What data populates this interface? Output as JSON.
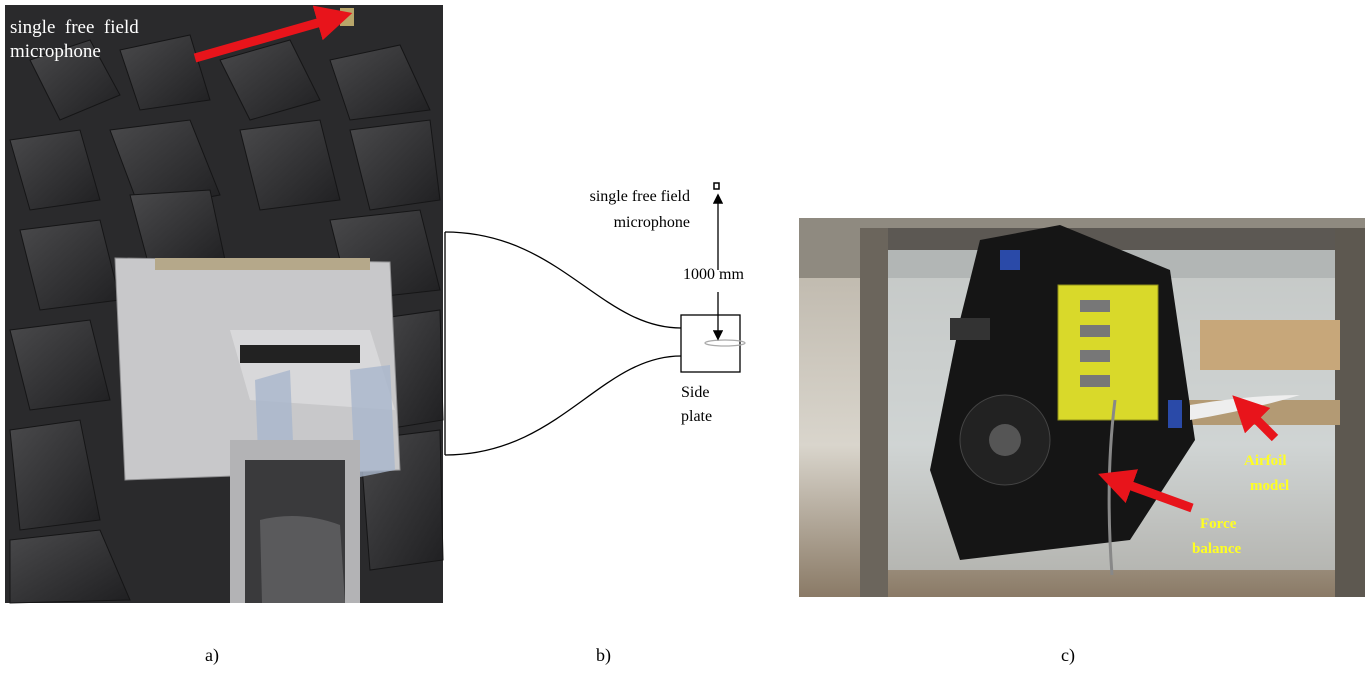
{
  "panels": [
    {
      "label": "a)",
      "annotation": [
        "single  free  field",
        "microphone"
      ]
    },
    {
      "label": "b)",
      "microphone_label": [
        "single free field",
        "microphone"
      ],
      "distance_label": "1000 mm",
      "plate_label": [
        "Side",
        "plate"
      ]
    },
    {
      "label": "c)",
      "airfoil_label": [
        "Airfoil",
        "model"
      ],
      "balance_label": [
        "Force",
        "balance"
      ]
    }
  ]
}
